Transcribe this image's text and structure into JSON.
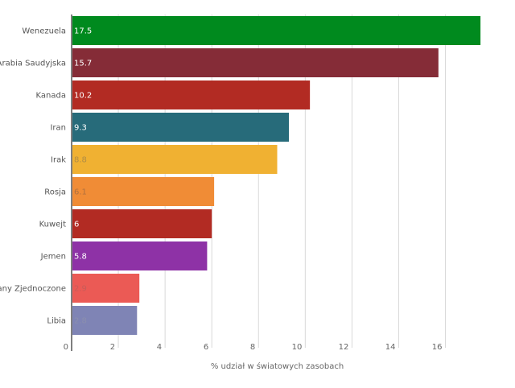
{
  "chart_data": {
    "type": "bar",
    "orientation": "horizontal",
    "categories": [
      "Wenezuela",
      "Arabia Saudyjska",
      "Kanada",
      "Iran",
      "Irak",
      "Rosja",
      "Kuwejt",
      "Jemen",
      "Stany Zjednoczone",
      "Libia"
    ],
    "values": [
      17.5,
      15.7,
      10.2,
      9.3,
      8.8,
      6.1,
      6,
      5.8,
      2.9,
      2.8
    ],
    "value_labels": [
      "17.5",
      "15.7",
      "10.2",
      "9.3",
      "8.8",
      "6.1",
      "6",
      "5.8",
      "2.9",
      "2.8"
    ],
    "colors": [
      "#008a1e",
      "#852c37",
      "#b22b23",
      "#276b7a",
      "#f0b132",
      "#f08c36",
      "#b22b23",
      "#8e32a6",
      "#eb5a55",
      "#7f84b5"
    ],
    "value_label_colors": [
      "#ffffff",
      "#ffffff",
      "#ffffff",
      "#ffffff",
      "#b08d45",
      "#b0703f",
      "#ffffff",
      "#ffffff",
      "#c75c58",
      "#8b8fae"
    ],
    "xlabel": "% udział w światowych zasobach",
    "ylabel": "",
    "xlim": [
      0,
      17.6
    ],
    "xticks": [
      0,
      2,
      4,
      6,
      8,
      10,
      12,
      14,
      16
    ],
    "grid": true
  }
}
